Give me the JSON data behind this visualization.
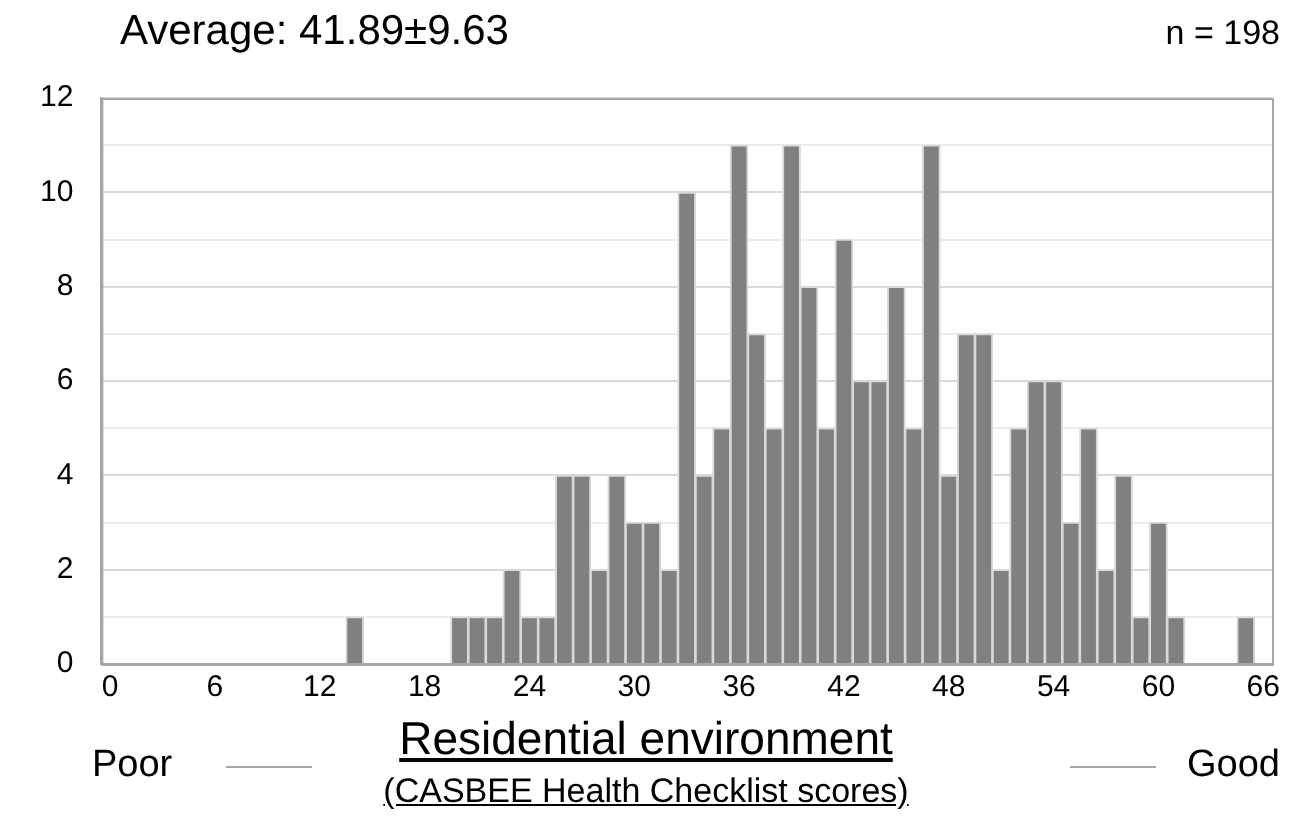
{
  "chart_data": {
    "type": "histogram",
    "title": "Average: 41.89±9.63",
    "xlabel": "Residential environment",
    "annotations": [
      "n = 198",
      "Poor",
      "Good",
      "(CASBEE Health Checklist scores)"
    ],
    "bins": [
      -0.5,
      0.5,
      1.5,
      2.5,
      3.5,
      4.5,
      5.5,
      6.5,
      7.5,
      8.5,
      9.5,
      10.5,
      11.5,
      12.5,
      13.5,
      14.5,
      15.5,
      16.5,
      17.5,
      18.5,
      19.5,
      20.5,
      21.5,
      22.5,
      23.5,
      24.5,
      25.5,
      26.5,
      27.5,
      28.5,
      29.5,
      30.5,
      31.5,
      32.5,
      33.5,
      34.5,
      35.5,
      36.5,
      37.5,
      38.5,
      39.5,
      40.5,
      41.5,
      42.5,
      43.5,
      44.5,
      45.5,
      46.5,
      47.5,
      48.5,
      49.5,
      50.5,
      51.5,
      52.5,
      53.5,
      54.5,
      55.5,
      56.5,
      57.5,
      58.5,
      59.5,
      60.5,
      61.5,
      62.5,
      63.5,
      64.5,
      65.5,
      66.5
    ],
    "values": [
      0,
      0,
      0,
      0,
      0,
      0,
      0,
      0,
      0,
      0,
      0,
      0,
      0,
      0,
      1,
      0,
      0,
      0,
      0,
      0,
      1,
      1,
      1,
      2,
      1,
      1,
      4,
      4,
      2,
      4,
      3,
      3,
      2,
      10,
      4,
      5,
      11,
      7,
      5,
      11,
      8,
      5,
      9,
      6,
      6,
      8,
      5,
      11,
      4,
      7,
      7,
      2,
      5,
      6,
      6,
      3,
      5,
      2,
      4,
      1,
      3,
      1,
      0,
      0,
      0,
      1,
      0
    ],
    "color": "#808080",
    "xlim": [
      -0.5,
      66.5
    ],
    "xticks": [
      0,
      6,
      12,
      18,
      24,
      30,
      36,
      42,
      48,
      54,
      60,
      66
    ],
    "ylim": [
      0,
      12
    ],
    "yticks": [
      0,
      {
        "value": 1,
        "label": null
      },
      2,
      {
        "value": 3,
        "label": null
      },
      4,
      {
        "value": 5,
        "label": null
      },
      6,
      {
        "value": 7,
        "label": null
      },
      8,
      {
        "value": 9,
        "label": null
      },
      10,
      {
        "value": 11,
        "label": null
      },
      12
    ],
    "grid": "y"
  }
}
